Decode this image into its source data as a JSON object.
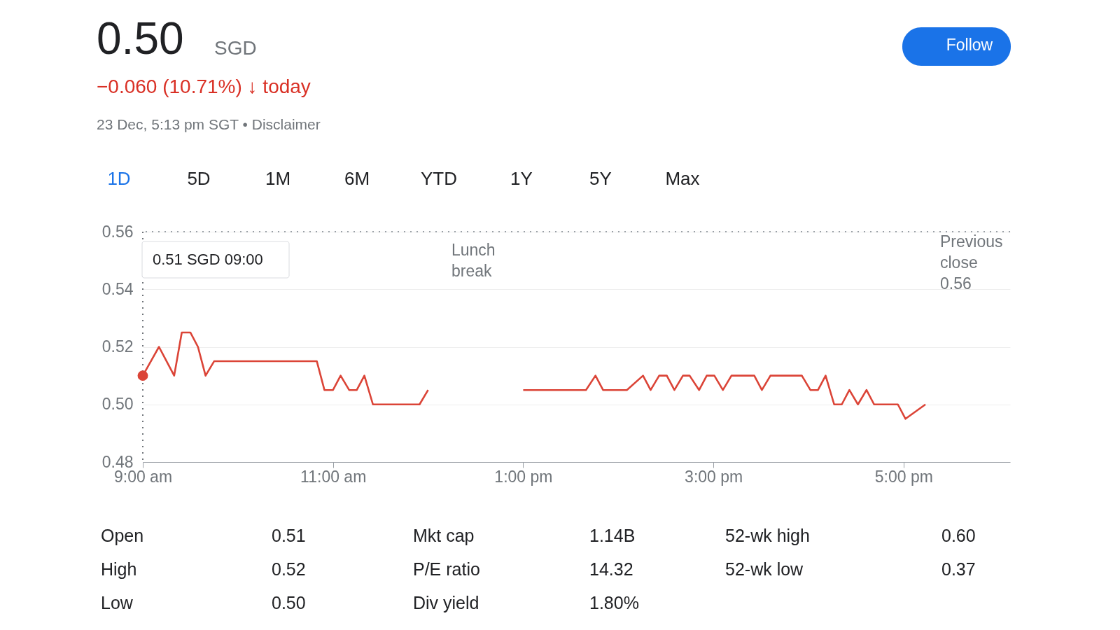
{
  "chart_data": {
    "type": "line",
    "title": "0.50",
    "subtitle": "−0.060 (10.71%) ↓ today",
    "series": [
      {
        "color": "#db4437",
        "x": [
          9.0,
          9.17,
          9.33,
          9.41,
          9.5,
          9.58,
          9.66,
          9.75,
          10.83,
          10.91,
          11.0,
          11.08,
          11.17,
          11.25,
          11.33,
          11.42,
          11.91,
          12.0,
          12.5,
          13.0,
          13.66,
          13.76,
          13.84,
          14.09,
          14.26,
          14.34,
          14.43,
          14.51,
          14.59,
          14.68,
          14.75,
          14.85,
          14.93,
          15.01,
          15.1,
          15.19,
          15.43,
          15.51,
          15.6,
          15.93,
          16.02,
          16.1,
          16.18,
          16.27,
          16.35,
          16.43,
          16.52,
          16.61,
          16.69,
          16.94,
          17.02,
          17.23
        ],
        "values": [
          0.51,
          0.52,
          0.51,
          0.525,
          0.525,
          0.52,
          0.51,
          0.515,
          0.515,
          0.505,
          0.505,
          0.51,
          0.505,
          0.505,
          0.51,
          0.5,
          0.5,
          0.505,
          null,
          0.505,
          0.505,
          0.51,
          0.505,
          0.505,
          0.51,
          0.505,
          0.51,
          0.51,
          0.505,
          0.51,
          0.51,
          0.505,
          0.51,
          0.51,
          0.505,
          0.51,
          0.51,
          0.505,
          0.51,
          0.51,
          0.505,
          0.505,
          0.51,
          0.5,
          0.5,
          0.505,
          0.5,
          0.505,
          0.5,
          0.5,
          0.495,
          0.5
        ]
      }
    ],
    "xlim": [
      9,
      18.12
    ],
    "xticks": [
      {
        "value": 9,
        "label": "9:00 am"
      },
      {
        "value": 11,
        "label": "11:00 am"
      },
      {
        "value": 13,
        "label": "1:00 pm"
      },
      {
        "value": 15,
        "label": "3:00 pm"
      },
      {
        "value": 17,
        "label": "5:00 pm"
      }
    ],
    "ylim": [
      0.48,
      0.56
    ],
    "yticks": [
      {
        "value": 0.48,
        "label": "0.48"
      },
      {
        "value": 0.5,
        "label": "0.50"
      },
      {
        "value": 0.52,
        "label": "0.52"
      },
      {
        "value": 0.54,
        "label": "0.54"
      },
      {
        "value": 0.56,
        "label": "0.56"
      }
    ],
    "grid": "y",
    "ref_lines": [
      {
        "axis": "y",
        "value": 0.56,
        "label": "Previous close 0.56",
        "line_style": "dotted",
        "color": "#9aa0a6"
      },
      {
        "axis": "x",
        "value": 9,
        "label": null,
        "line_style": "dotted",
        "color": "#70757a"
      }
    ],
    "annotations": [
      "SGD",
      "23 Dec, 5:13 pm SGT • Disclaimer",
      "Follow",
      "1D",
      "5D",
      "1M",
      "6M",
      "YTD",
      "1Y",
      "5Y",
      "Max",
      "Lunch break",
      "0.51 SGD  09:00",
      "Open",
      "0.51",
      "Mkt cap",
      "1.14B",
      "52-wk high",
      "0.60",
      "High",
      "0.52",
      "P/E ratio",
      "14.32",
      "52-wk low",
      "0.37",
      "Low",
      "0.50",
      "Div yield",
      "1.80%"
    ]
  }
}
